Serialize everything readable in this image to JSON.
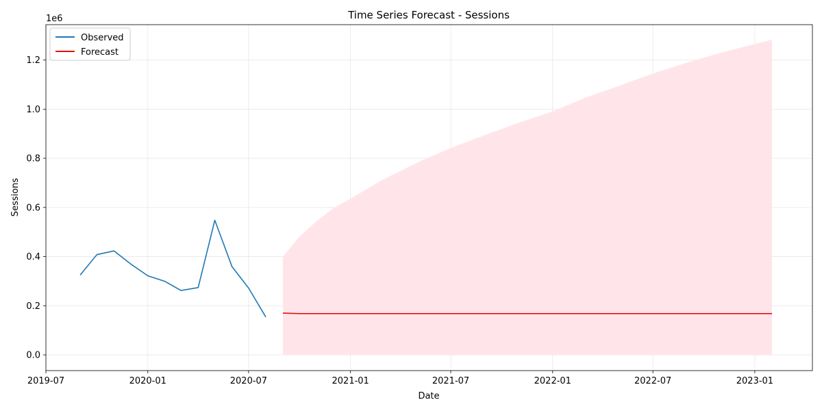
{
  "chart_data": {
    "type": "line",
    "title": "Time Series Forecast - Sessions",
    "xlabel": "Date",
    "ylabel": "Sessions",
    "y_offset_label": "1e6",
    "ylim": [
      -0.064,
      1.344
    ],
    "xlim": [
      "2019-07-01",
      "2023-04-15"
    ],
    "y_ticks": [
      0.0,
      0.2,
      0.4,
      0.6,
      0.8,
      1.0,
      1.2
    ],
    "y_tick_labels": [
      "0.0",
      "0.2",
      "0.4",
      "0.6",
      "0.8",
      "1.0",
      "1.2"
    ],
    "x_ticks": [
      "2019-07-01",
      "2020-01-01",
      "2020-07-01",
      "2021-01-01",
      "2021-07-01",
      "2022-01-01",
      "2022-07-01",
      "2023-01-01"
    ],
    "x_tick_labels": [
      "2019-07",
      "2020-01",
      "2020-07",
      "2021-01",
      "2021-07",
      "2022-01",
      "2022-07",
      "2023-01"
    ],
    "grid": true,
    "legend_position": "top-left",
    "series": [
      {
        "name": "Observed",
        "color": "#1f77b4",
        "x": [
          "2019-09-01",
          "2019-10-01",
          "2019-11-01",
          "2019-12-01",
          "2020-01-01",
          "2020-02-01",
          "2020-03-01",
          "2020-04-01",
          "2020-05-01",
          "2020-06-01",
          "2020-07-01",
          "2020-08-01"
        ],
        "values": [
          0.325,
          0.408,
          0.423,
          0.37,
          0.322,
          0.299,
          0.262,
          0.274,
          0.548,
          0.359,
          0.272,
          0.154
        ]
      },
      {
        "name": "Forecast",
        "color": "#e8100c",
        "x": [
          "2020-09-01",
          "2020-10-01",
          "2020-11-01",
          "2021-02-01",
          "2021-06-01",
          "2021-10-01",
          "2022-02-01",
          "2022-06-01",
          "2022-10-01",
          "2023-02-01"
        ],
        "values": [
          0.17,
          0.168,
          0.168,
          0.168,
          0.168,
          0.168,
          0.168,
          0.168,
          0.168,
          0.168
        ]
      }
    ],
    "confidence_band": {
      "color": "#ffe5ea",
      "x": [
        "2020-09-01",
        "2020-10-01",
        "2020-11-01",
        "2020-12-01",
        "2021-01-01",
        "2021-03-01",
        "2021-05-01",
        "2021-07-01",
        "2021-09-01",
        "2021-11-01",
        "2022-01-01",
        "2022-03-01",
        "2022-05-01",
        "2022-07-01",
        "2022-09-01",
        "2022-11-01",
        "2023-02-01"
      ],
      "lower": [
        0.0,
        0.0,
        0.0,
        0.0,
        0.0,
        0.0,
        0.0,
        0.0,
        0.0,
        0.0,
        0.0,
        0.0,
        0.0,
        0.0,
        0.0,
        0.0,
        0.0
      ],
      "upper": [
        0.4,
        0.482,
        0.545,
        0.597,
        0.636,
        0.714,
        0.782,
        0.842,
        0.895,
        0.945,
        0.991,
        1.047,
        1.095,
        1.145,
        1.19,
        1.23,
        1.283
      ]
    }
  }
}
